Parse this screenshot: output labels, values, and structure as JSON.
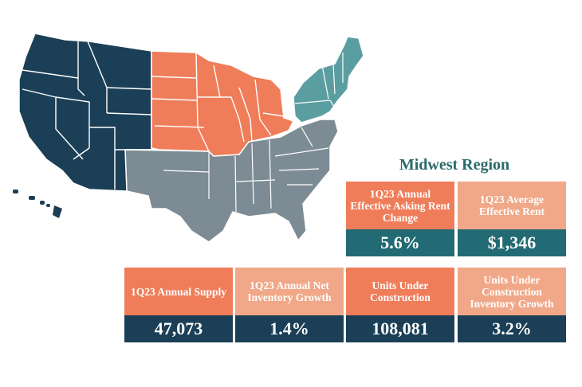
{
  "region_title": "Midwest Region",
  "colors": {
    "west": "#1b3f56",
    "midwest": "#ef7d5a",
    "south": "#7d8b95",
    "northeast": "#5b9ea1",
    "label_dark": "#ef7d5a",
    "label_light": "#f0a889",
    "value_teal": "#236b74",
    "value_navy": "#1b3f56"
  },
  "cards": [
    {
      "label": "1Q23 Annual Effective Asking Rent Change",
      "value": "5.6%"
    },
    {
      "label": "1Q23 Average Effective Rent",
      "value": "$1,346"
    },
    {
      "label": "1Q23 Annual Supply",
      "value": "47,073"
    },
    {
      "label": "1Q23 Annual Net Inventory Growth",
      "value": "1.4%"
    },
    {
      "label": "Units Under Construction",
      "value": "108,081"
    },
    {
      "label": "Units Under Construction Inventory Growth",
      "value": "3.2%"
    }
  ]
}
